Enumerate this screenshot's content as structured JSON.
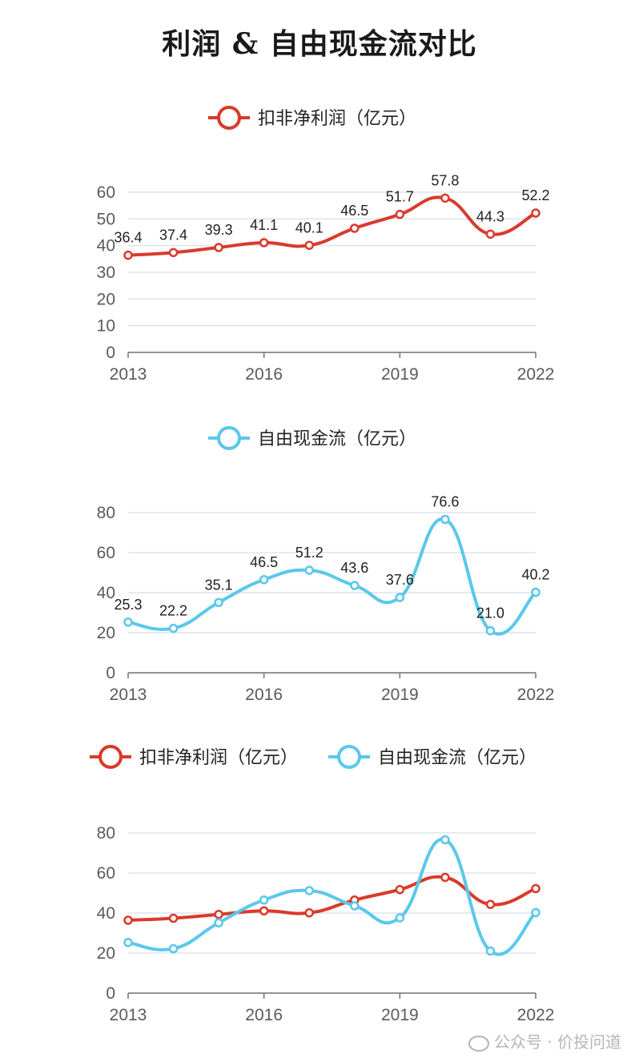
{
  "title": "利润 & 自由现金流对比",
  "colors": {
    "profit": "#d93a2b",
    "fcf": "#5ac8ea",
    "grid": "#dde3ee",
    "axis": "#6e7079"
  },
  "chart_data": [
    {
      "type": "line",
      "years": [
        2013,
        2014,
        2015,
        2016,
        2017,
        2018,
        2019,
        2020,
        2021,
        2022
      ],
      "x_tick_labels": [
        "2013",
        "2016",
        "2019",
        "2022"
      ],
      "ylim": [
        0,
        60
      ],
      "y_ticks": [
        0,
        10,
        20,
        30,
        40,
        50,
        60
      ],
      "legend": [
        "扣非净利润（亿元）"
      ],
      "show_data_labels": true,
      "series": [
        {
          "name": "扣非净利润（亿元）",
          "color_key": "profit",
          "values": [
            36.4,
            37.4,
            39.3,
            41.1,
            40.1,
            46.5,
            51.7,
            57.8,
            44.3,
            52.2
          ]
        }
      ]
    },
    {
      "type": "line",
      "years": [
        2013,
        2014,
        2015,
        2016,
        2017,
        2018,
        2019,
        2020,
        2021,
        2022
      ],
      "x_tick_labels": [
        "2013",
        "2016",
        "2019",
        "2022"
      ],
      "ylim": [
        0,
        80
      ],
      "y_ticks": [
        0,
        20,
        40,
        60,
        80
      ],
      "legend": [
        "自由现金流（亿元）"
      ],
      "show_data_labels": true,
      "series": [
        {
          "name": "自由现金流（亿元）",
          "color_key": "fcf",
          "values": [
            25.3,
            22.2,
            35.1,
            46.5,
            51.2,
            43.6,
            37.6,
            76.6,
            21.0,
            40.2
          ]
        }
      ]
    },
    {
      "type": "line",
      "years": [
        2013,
        2014,
        2015,
        2016,
        2017,
        2018,
        2019,
        2020,
        2021,
        2022
      ],
      "x_tick_labels": [
        "2013",
        "2016",
        "2019",
        "2022"
      ],
      "ylim": [
        0,
        80
      ],
      "y_ticks": [
        0,
        20,
        40,
        60,
        80
      ],
      "legend": [
        "扣非净利润（亿元）",
        "自由现金流（亿元）"
      ],
      "show_data_labels": false,
      "series": [
        {
          "name": "扣非净利润（亿元）",
          "color_key": "profit",
          "values": [
            36.4,
            37.4,
            39.3,
            41.1,
            40.1,
            46.5,
            51.7,
            57.8,
            44.3,
            52.2
          ]
        },
        {
          "name": "自由现金流（亿元）",
          "color_key": "fcf",
          "values": [
            25.3,
            22.2,
            35.1,
            46.5,
            51.2,
            43.6,
            37.6,
            76.6,
            21.0,
            40.2
          ]
        }
      ]
    }
  ],
  "watermark": "公众号 · 价投问道"
}
